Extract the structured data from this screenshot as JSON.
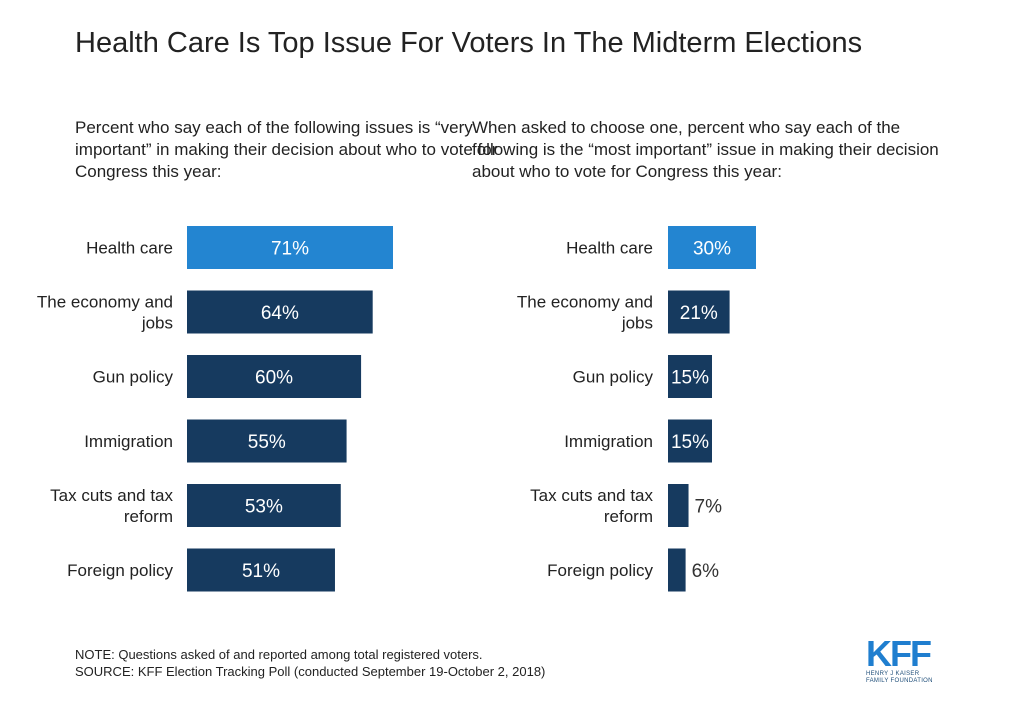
{
  "title": "Health Care Is Top Issue For Voters In The Midterm Elections",
  "chart_data": [
    {
      "type": "bar",
      "orientation": "horizontal",
      "subtitle": "Percent who say each of the following issues is “very important” in making their decision about who to vote for Congress this year:",
      "categories": [
        [
          "Health care"
        ],
        [
          "The economy and",
          "jobs"
        ],
        [
          "Gun policy"
        ],
        [
          "Immigration"
        ],
        [
          "Tax cuts and tax",
          "reform"
        ],
        [
          "Foreign policy"
        ]
      ],
      "values": [
        71,
        64,
        60,
        55,
        53,
        51
      ],
      "value_labels": [
        "71%",
        "64%",
        "60%",
        "55%",
        "53%",
        "51%"
      ],
      "highlight_index": 0
    },
    {
      "type": "bar",
      "orientation": "horizontal",
      "subtitle": "When asked to choose one, percent who say each of the following is the “most important” issue in making their decision about who to vote for Congress this year:",
      "categories": [
        [
          "Health care"
        ],
        [
          "The economy and",
          "jobs"
        ],
        [
          "Gun policy"
        ],
        [
          "Immigration"
        ],
        [
          "Tax cuts and tax",
          "reform"
        ],
        [
          "Foreign policy"
        ]
      ],
      "values": [
        30,
        21,
        15,
        15,
        7,
        6
      ],
      "value_labels": [
        "30%",
        "21%",
        "15%",
        "15%",
        "7%",
        "6%"
      ],
      "highlight_index": 0
    }
  ],
  "colors": {
    "highlight": "#2385d1",
    "bar": "#163a5f",
    "label_inside": "#ffffff",
    "label_outside": "#333333"
  },
  "footer": {
    "note": "NOTE: Questions asked of and reported among total registered voters.",
    "source": "SOURCE: KFF Election Tracking Poll (conducted September 19-October 2, 2018)"
  },
  "logo": {
    "text": "KFF",
    "org_line1": "HENRY J KAISER",
    "org_line2": "FAMILY FOUNDATION"
  }
}
